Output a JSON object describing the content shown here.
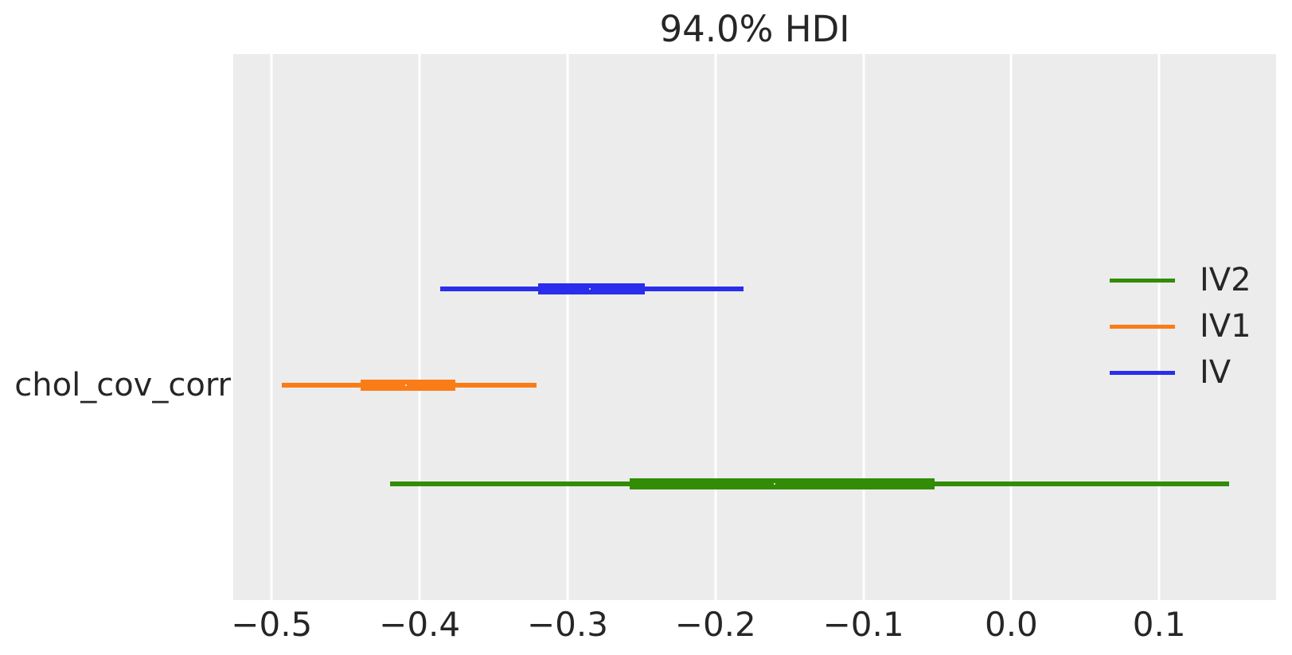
{
  "figure": {
    "title": "94.0% HDI",
    "y_label": "chol_cov_corr"
  },
  "colors": {
    "panel_background": "#ececec",
    "gridline": "#ffffff",
    "text": "#262626",
    "iv_blue": "#2a2eec",
    "iv1_orange": "#fa7c17",
    "iv2_green": "#328c06",
    "dot_fill": "#ffffff"
  },
  "chart_data": {
    "type": "forest",
    "title": "94.0% HDI",
    "hdi_probability": "94.0%",
    "variable": "chol_cov_corr",
    "xlim": [
      -0.526,
      0.179
    ],
    "xticks": [
      {
        "value": -0.5,
        "label": "−0.5"
      },
      {
        "value": -0.4,
        "label": "−0.4"
      },
      {
        "value": -0.3,
        "label": "−0.3"
      },
      {
        "value": -0.2,
        "label": "−0.2"
      },
      {
        "value": -0.1,
        "label": "−0.1"
      },
      {
        "value": 0.0,
        "label": "0.0"
      },
      {
        "value": 0.1,
        "label": "0.1"
      }
    ],
    "grid": true,
    "legend_position": "center-right",
    "legend": [
      {
        "name": "IV2",
        "color": "#328c06"
      },
      {
        "name": "IV1",
        "color": "#fa7c17"
      },
      {
        "name": "IV",
        "color": "#2a2eec"
      }
    ],
    "series": [
      {
        "name": "IV",
        "color": "#2a2eec",
        "y_frac": 0.43,
        "hdi": [
          -0.386,
          -0.181
        ],
        "quartile": [
          -0.32,
          -0.248
        ],
        "median": -0.285
      },
      {
        "name": "IV1",
        "color": "#fa7c17",
        "y_frac": 0.607,
        "hdi": [
          -0.493,
          -0.321
        ],
        "quartile": [
          -0.44,
          -0.376
        ],
        "median": -0.409
      },
      {
        "name": "IV2",
        "color": "#328c06",
        "y_frac": 0.787,
        "hdi": [
          -0.42,
          0.147
        ],
        "quartile": [
          -0.258,
          -0.052
        ],
        "median": -0.16
      }
    ]
  }
}
